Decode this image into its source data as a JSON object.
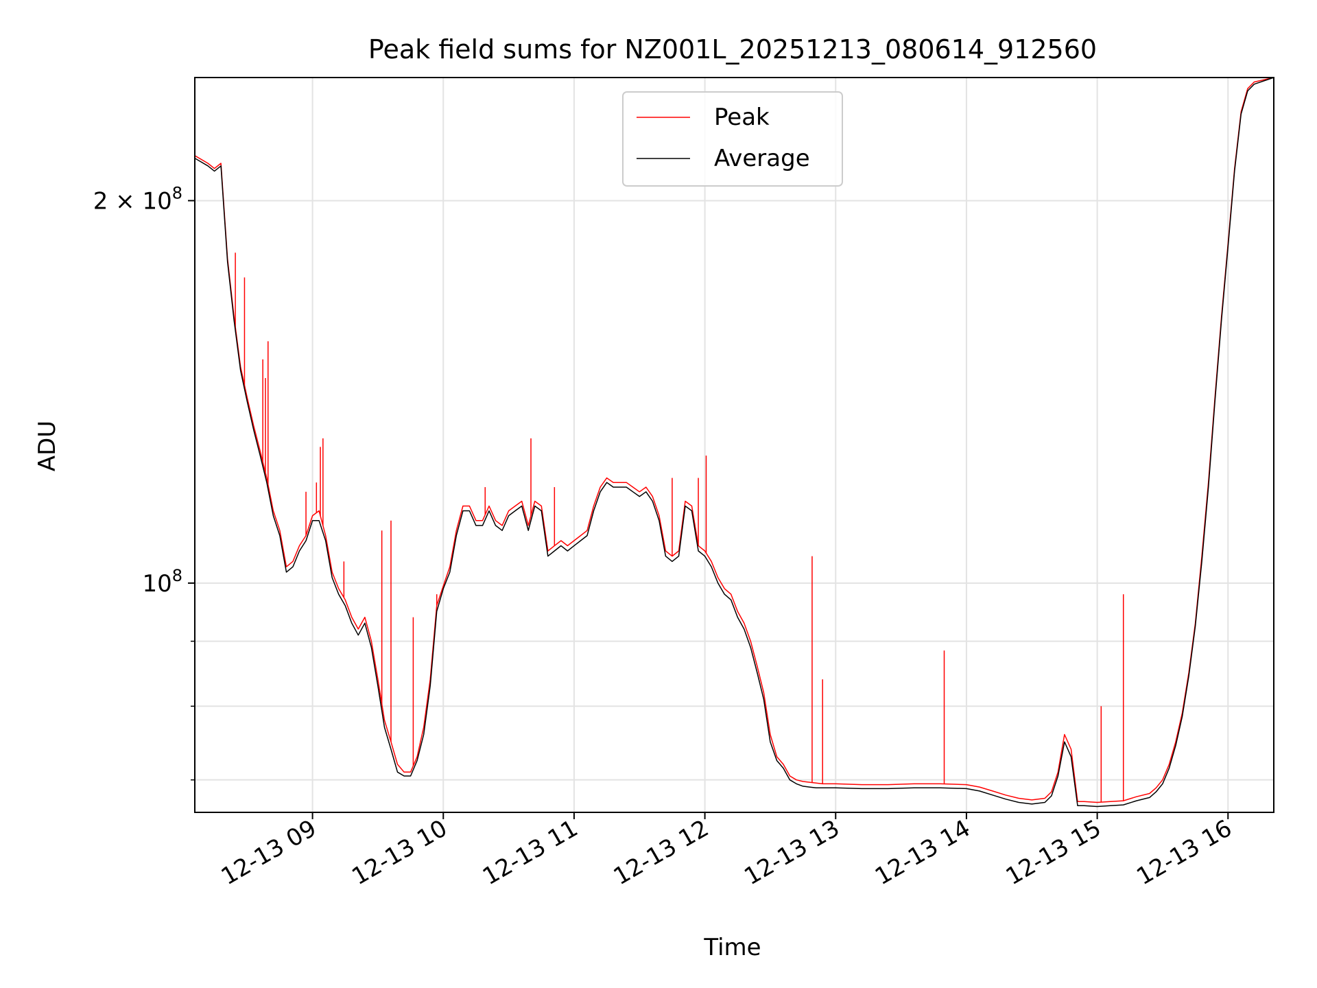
{
  "chart_data": {
    "type": "line",
    "title": "Peak field sums for NZ001L_20251213_080614_912560",
    "xlabel": "Time",
    "ylabel": "ADU",
    "yscale": "log",
    "xlim": [
      8.1,
      16.35
    ],
    "ylim": [
      66000000,
      250000000
    ],
    "grid": true,
    "legend_position": "upper center",
    "x_ticks": [
      {
        "value": 9,
        "label": "12-13 09"
      },
      {
        "value": 10,
        "label": "12-13 10"
      },
      {
        "value": 11,
        "label": "12-13 11"
      },
      {
        "value": 12,
        "label": "12-13 12"
      },
      {
        "value": 13,
        "label": "12-13 13"
      },
      {
        "value": 14,
        "label": "12-13 14"
      },
      {
        "value": 15,
        "label": "12-13 15"
      },
      {
        "value": 16,
        "label": "12-13 16"
      }
    ],
    "y_ticks": [
      {
        "value": 200000000,
        "base": "2 × 10",
        "exp": "8"
      },
      {
        "value": 100000000,
        "base": "10",
        "exp": "8"
      }
    ],
    "y_minor_grid": [
      70000000,
      80000000,
      90000000
    ],
    "series": [
      {
        "name": "Peak",
        "color": "#ff0000",
        "x": [
          8.1,
          8.2,
          8.25,
          8.3,
          8.35,
          8.4,
          8.45,
          8.5,
          8.55,
          8.6,
          8.65,
          8.7,
          8.75,
          8.8,
          8.85,
          8.9,
          8.95,
          9.0,
          9.05,
          9.1,
          9.15,
          9.2,
          9.25,
          9.3,
          9.35,
          9.4,
          9.45,
          9.5,
          9.55,
          9.6,
          9.65,
          9.7,
          9.75,
          9.8,
          9.85,
          9.9,
          9.95,
          10.0,
          10.05,
          10.1,
          10.15,
          10.2,
          10.25,
          10.3,
          10.35,
          10.4,
          10.45,
          10.5,
          10.55,
          10.6,
          10.65,
          10.7,
          10.75,
          10.8,
          10.85,
          10.9,
          10.95,
          11.0,
          11.05,
          11.1,
          11.15,
          11.2,
          11.25,
          11.3,
          11.35,
          11.4,
          11.45,
          11.5,
          11.55,
          11.6,
          11.65,
          11.7,
          11.75,
          11.8,
          11.85,
          11.9,
          11.95,
          12.0,
          12.05,
          12.1,
          12.15,
          12.2,
          12.25,
          12.3,
          12.35,
          12.4,
          12.45,
          12.5,
          12.55,
          12.6,
          12.65,
          12.7,
          12.75,
          12.8,
          12.85,
          12.9,
          13.0,
          13.2,
          13.4,
          13.6,
          13.8,
          14.0,
          14.1,
          14.2,
          14.3,
          14.4,
          14.5,
          14.6,
          14.65,
          14.7,
          14.75,
          14.8,
          14.85,
          14.9,
          15.0,
          15.1,
          15.2,
          15.3,
          15.4,
          15.45,
          15.5,
          15.55,
          15.6,
          15.65,
          15.7,
          15.75,
          15.8,
          15.85,
          15.9,
          15.95,
          16.0,
          16.05,
          16.1,
          16.15,
          16.2,
          16.35
        ],
        "values": [
          217000000,
          214000000,
          212000000,
          214000000,
          180000000,
          162000000,
          148000000,
          140000000,
          133000000,
          127000000,
          121000000,
          114000000,
          110000000,
          103000000,
          104000000,
          107000000,
          109000000,
          113000000,
          114000000,
          109000000,
          102000000,
          99000000,
          97000000,
          94000000,
          92000000,
          94000000,
          90000000,
          84000000,
          78000000,
          75000000,
          72000000,
          71000000,
          71000000,
          73000000,
          77000000,
          84000000,
          96000000,
          99500000,
          103000000,
          110000000,
          115000000,
          115000000,
          112000000,
          112000000,
          115000000,
          112000000,
          111000000,
          114000000,
          115000000,
          116000000,
          111000000,
          116000000,
          115000000,
          106000000,
          107000000,
          108000000,
          107000000,
          108000000,
          109000000,
          110000000,
          115000000,
          119000000,
          121000000,
          120000000,
          120000000,
          120000000,
          119000000,
          118000000,
          119000000,
          117000000,
          113000000,
          106000000,
          105000000,
          106000000,
          116000000,
          115000000,
          107000000,
          106000000,
          104000000,
          101000000,
          99000000,
          98000000,
          95000000,
          93000000,
          90000000,
          86000000,
          82000000,
          76000000,
          73000000,
          72000000,
          70500000,
          70000000,
          69800000,
          69700000,
          69600000,
          69500000,
          69500000,
          69400000,
          69400000,
          69500000,
          69500000,
          69400000,
          69100000,
          68600000,
          68100000,
          67700000,
          67500000,
          67700000,
          68500000,
          71000000,
          76000000,
          74000000,
          67300000,
          67300000,
          67200000,
          67300000,
          67400000,
          67900000,
          68300000,
          69000000,
          70000000,
          72000000,
          75000000,
          79000000,
          85000000,
          93000000,
          105000000,
          120000000,
          140000000,
          162000000,
          185000000,
          212000000,
          235000000,
          245000000,
          248000000,
          250000000
        ]
      },
      {
        "name": "Average",
        "color": "#000000",
        "x": [
          8.1,
          8.2,
          8.25,
          8.3,
          8.35,
          8.4,
          8.45,
          8.5,
          8.55,
          8.6,
          8.65,
          8.7,
          8.75,
          8.8,
          8.85,
          8.9,
          8.95,
          9.0,
          9.05,
          9.1,
          9.15,
          9.2,
          9.25,
          9.3,
          9.35,
          9.4,
          9.45,
          9.5,
          9.55,
          9.6,
          9.65,
          9.7,
          9.75,
          9.8,
          9.85,
          9.9,
          9.95,
          10.0,
          10.05,
          10.1,
          10.15,
          10.2,
          10.25,
          10.3,
          10.35,
          10.4,
          10.45,
          10.5,
          10.55,
          10.6,
          10.65,
          10.7,
          10.75,
          10.8,
          10.85,
          10.9,
          10.95,
          11.0,
          11.05,
          11.1,
          11.15,
          11.2,
          11.25,
          11.3,
          11.35,
          11.4,
          11.45,
          11.5,
          11.55,
          11.6,
          11.65,
          11.7,
          11.75,
          11.8,
          11.85,
          11.9,
          11.95,
          12.0,
          12.05,
          12.1,
          12.15,
          12.2,
          12.25,
          12.3,
          12.35,
          12.4,
          12.45,
          12.5,
          12.55,
          12.6,
          12.65,
          12.7,
          12.75,
          12.8,
          12.85,
          12.9,
          13.0,
          13.2,
          13.4,
          13.6,
          13.8,
          14.0,
          14.1,
          14.2,
          14.3,
          14.4,
          14.5,
          14.6,
          14.65,
          14.7,
          14.75,
          14.8,
          14.85,
          14.9,
          15.0,
          15.1,
          15.2,
          15.3,
          15.4,
          15.45,
          15.5,
          15.55,
          15.6,
          15.65,
          15.7,
          15.75,
          15.8,
          15.85,
          15.9,
          15.95,
          16.0,
          16.05,
          16.1,
          16.15,
          16.2,
          16.35
        ],
        "values": [
          216000000,
          213000000,
          211000000,
          213000000,
          179000000,
          161000000,
          147000000,
          139000000,
          132000000,
          126000000,
          120000000,
          113000000,
          109000000,
          102000000,
          103000000,
          106000000,
          108000000,
          112000000,
          112000000,
          108000000,
          101000000,
          98000000,
          96000000,
          93000000,
          91000000,
          93000000,
          89000000,
          83000000,
          77000000,
          74000000,
          71000000,
          70500000,
          70500000,
          72500000,
          76000000,
          83000000,
          95000000,
          99000000,
          102000000,
          109000000,
          114000000,
          114000000,
          111000000,
          111000000,
          114000000,
          111000000,
          110000000,
          113000000,
          114000000,
          115000000,
          110000000,
          115000000,
          114000000,
          105000000,
          106000000,
          107000000,
          106000000,
          107000000,
          108000000,
          109000000,
          114000000,
          118000000,
          120000000,
          119000000,
          119000000,
          119000000,
          118000000,
          117000000,
          118000000,
          116000000,
          112000000,
          105000000,
          104000000,
          105000000,
          115000000,
          114000000,
          106000000,
          105000000,
          103000000,
          100000000,
          98000000,
          97000000,
          94000000,
          92000000,
          89000000,
          85000000,
          81000000,
          75000000,
          72500000,
          71500000,
          70000000,
          69500000,
          69200000,
          69100000,
          69000000,
          69000000,
          69000000,
          68900000,
          68900000,
          69000000,
          69000000,
          68900000,
          68600000,
          68100000,
          67600000,
          67200000,
          67000000,
          67200000,
          68000000,
          70500000,
          75000000,
          73000000,
          66800000,
          66800000,
          66700000,
          66800000,
          66900000,
          67400000,
          67800000,
          68500000,
          69500000,
          71500000,
          74500000,
          78500000,
          84500000,
          92500000,
          104000000,
          119000000,
          139000000,
          161000000,
          184000000,
          211000000,
          234000000,
          244000000,
          247000000,
          250000000
        ]
      }
    ],
    "peak_spikes": [
      {
        "x": 8.41,
        "value": 182000000
      },
      {
        "x": 8.48,
        "value": 174000000
      },
      {
        "x": 8.62,
        "value": 150000000
      },
      {
        "x": 8.64,
        "value": 145000000
      },
      {
        "x": 8.66,
        "value": 155000000
      },
      {
        "x": 8.95,
        "value": 118000000
      },
      {
        "x": 9.03,
        "value": 120000000
      },
      {
        "x": 9.06,
        "value": 128000000
      },
      {
        "x": 9.08,
        "value": 130000000
      },
      {
        "x": 9.24,
        "value": 104000000
      },
      {
        "x": 9.53,
        "value": 110000000
      },
      {
        "x": 9.6,
        "value": 112000000
      },
      {
        "x": 9.77,
        "value": 94000000
      },
      {
        "x": 9.95,
        "value": 98000000
      },
      {
        "x": 10.32,
        "value": 119000000
      },
      {
        "x": 10.67,
        "value": 130000000
      },
      {
        "x": 10.85,
        "value": 119000000
      },
      {
        "x": 11.75,
        "value": 121000000
      },
      {
        "x": 11.95,
        "value": 121000000
      },
      {
        "x": 12.01,
        "value": 126000000
      },
      {
        "x": 12.82,
        "value": 105000000
      },
      {
        "x": 12.9,
        "value": 84000000
      },
      {
        "x": 13.83,
        "value": 88500000
      },
      {
        "x": 15.03,
        "value": 80000000
      },
      {
        "x": 15.2,
        "value": 98000000
      }
    ]
  }
}
